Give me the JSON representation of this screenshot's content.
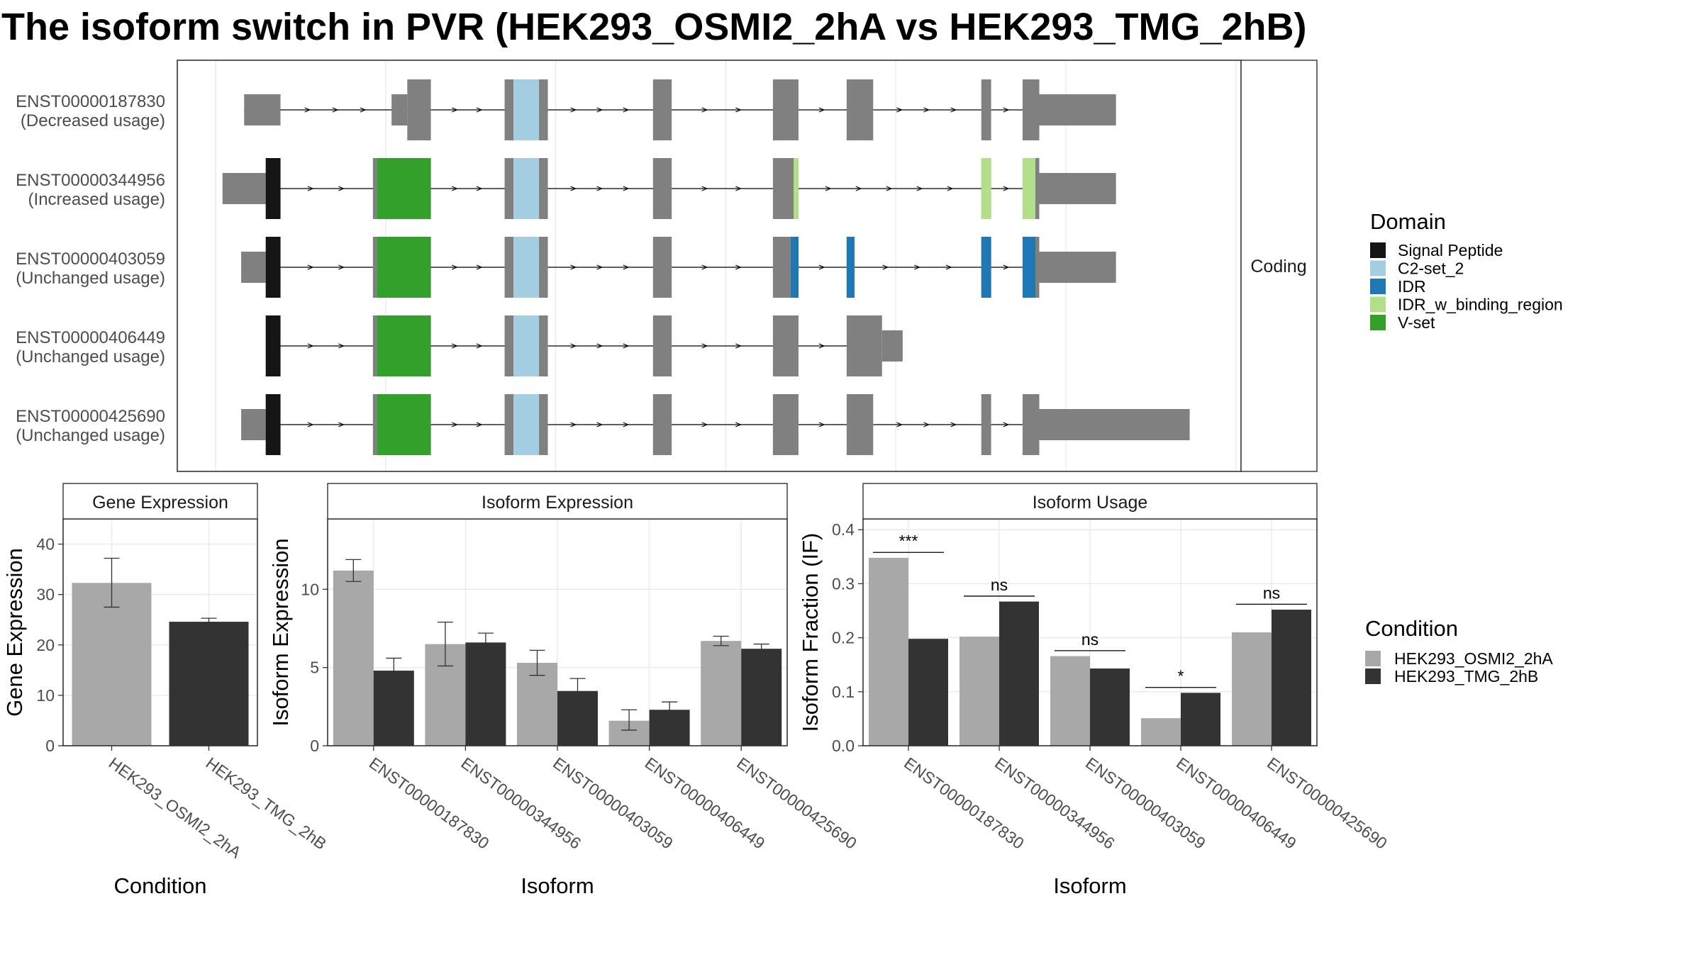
{
  "title": "The isoform switch in PVR (HEK293_OSMI2_2hA vs HEK293_TMG_2hB)",
  "colors": {
    "intron": "#000000",
    "exon": "#808080",
    "cond1": "#a8a8a8",
    "cond2": "#333333",
    "domains": {
      "Signal Peptide": "#141414",
      "C2-set_2": "#a6cee3",
      "IDR": "#1f78b4",
      "IDR_w_binding_region": "#b2df8a",
      "V-set": "#33a02c"
    }
  },
  "structure": {
    "strip_label": "Coding",
    "legend": {
      "title": "Domain",
      "items": [
        "Signal Peptide",
        "C2-set_2",
        "IDR",
        "IDR_w_binding_region",
        "V-set"
      ]
    },
    "transcripts": [
      {
        "id": "ENST00000187830",
        "usage": "(Decreased usage)",
        "exons": [
          [
            0.068,
            0.105,
            "utr"
          ],
          [
            0.218,
            0.234,
            "utr"
          ],
          [
            0.234,
            0.258,
            "cds"
          ],
          [
            0.333,
            0.342,
            "cds"
          ],
          [
            0.342,
            0.368,
            "cds"
          ],
          [
            0.368,
            0.377,
            "cds"
          ],
          [
            0.484,
            0.503,
            "cds"
          ],
          [
            0.606,
            0.632,
            "cds"
          ],
          [
            0.681,
            0.708,
            "cds"
          ],
          [
            0.818,
            0.828,
            "cds"
          ],
          [
            0.86,
            0.877,
            "cds"
          ],
          [
            0.877,
            0.955,
            "utr"
          ]
        ],
        "domains": [
          [
            0.342,
            0.368,
            "C2-set_2"
          ]
        ]
      },
      {
        "id": "ENST00000344956",
        "usage": "(Increased usage)",
        "exons": [
          [
            0.046,
            0.09,
            "utr"
          ],
          [
            0.09,
            0.105,
            "cds"
          ],
          [
            0.199,
            0.203,
            "cds"
          ],
          [
            0.203,
            0.258,
            "cds"
          ],
          [
            0.333,
            0.342,
            "cds"
          ],
          [
            0.342,
            0.368,
            "cds"
          ],
          [
            0.368,
            0.377,
            "cds"
          ],
          [
            0.484,
            0.503,
            "cds"
          ],
          [
            0.606,
            0.627,
            "cds"
          ],
          [
            0.627,
            0.632,
            "cds"
          ],
          [
            0.818,
            0.828,
            "cds"
          ],
          [
            0.86,
            0.873,
            "cds"
          ],
          [
            0.873,
            0.877,
            "cds"
          ],
          [
            0.877,
            0.955,
            "utr"
          ]
        ],
        "domains": [
          [
            0.09,
            0.105,
            "Signal Peptide"
          ],
          [
            0.203,
            0.258,
            "V-set"
          ],
          [
            0.342,
            0.368,
            "C2-set_2"
          ],
          [
            0.627,
            0.632,
            "IDR_w_binding_region"
          ],
          [
            0.818,
            0.828,
            "IDR_w_binding_region"
          ],
          [
            0.86,
            0.873,
            "IDR_w_binding_region"
          ]
        ]
      },
      {
        "id": "ENST00000403059",
        "usage": "(Unchanged usage)",
        "exons": [
          [
            0.065,
            0.09,
            "utr"
          ],
          [
            0.09,
            0.105,
            "cds"
          ],
          [
            0.199,
            0.203,
            "cds"
          ],
          [
            0.203,
            0.258,
            "cds"
          ],
          [
            0.333,
            0.342,
            "cds"
          ],
          [
            0.342,
            0.368,
            "cds"
          ],
          [
            0.368,
            0.377,
            "cds"
          ],
          [
            0.484,
            0.503,
            "cds"
          ],
          [
            0.606,
            0.624,
            "cds"
          ],
          [
            0.624,
            0.632,
            "cds"
          ],
          [
            0.681,
            0.689,
            "cds"
          ],
          [
            0.818,
            0.828,
            "cds"
          ],
          [
            0.86,
            0.873,
            "cds"
          ],
          [
            0.873,
            0.877,
            "cds"
          ],
          [
            0.877,
            0.955,
            "utr"
          ]
        ],
        "domains": [
          [
            0.09,
            0.105,
            "Signal Peptide"
          ],
          [
            0.203,
            0.258,
            "V-set"
          ],
          [
            0.342,
            0.368,
            "C2-set_2"
          ],
          [
            0.624,
            0.632,
            "IDR"
          ],
          [
            0.681,
            0.689,
            "IDR"
          ],
          [
            0.818,
            0.828,
            "IDR"
          ],
          [
            0.86,
            0.873,
            "IDR"
          ]
        ]
      },
      {
        "id": "ENST00000406449",
        "usage": "(Unchanged usage)",
        "exons": [
          [
            0.09,
            0.105,
            "cds"
          ],
          [
            0.199,
            0.203,
            "cds"
          ],
          [
            0.203,
            0.258,
            "cds"
          ],
          [
            0.333,
            0.342,
            "cds"
          ],
          [
            0.342,
            0.368,
            "cds"
          ],
          [
            0.368,
            0.377,
            "cds"
          ],
          [
            0.484,
            0.503,
            "cds"
          ],
          [
            0.606,
            0.632,
            "cds"
          ],
          [
            0.681,
            0.717,
            "cds"
          ],
          [
            0.717,
            0.738,
            "utr"
          ]
        ],
        "domains": [
          [
            0.09,
            0.105,
            "Signal Peptide"
          ],
          [
            0.203,
            0.258,
            "V-set"
          ],
          [
            0.342,
            0.368,
            "C2-set_2"
          ]
        ]
      },
      {
        "id": "ENST00000425690",
        "usage": "(Unchanged usage)",
        "exons": [
          [
            0.065,
            0.09,
            "utr"
          ],
          [
            0.09,
            0.105,
            "cds"
          ],
          [
            0.199,
            0.203,
            "cds"
          ],
          [
            0.203,
            0.258,
            "cds"
          ],
          [
            0.333,
            0.342,
            "cds"
          ],
          [
            0.342,
            0.368,
            "cds"
          ],
          [
            0.368,
            0.377,
            "cds"
          ],
          [
            0.484,
            0.503,
            "cds"
          ],
          [
            0.606,
            0.632,
            "cds"
          ],
          [
            0.681,
            0.708,
            "cds"
          ],
          [
            0.818,
            0.828,
            "cds"
          ],
          [
            0.86,
            0.877,
            "cds"
          ],
          [
            0.877,
            1.03,
            "utr"
          ]
        ],
        "domains": [
          [
            0.09,
            0.105,
            "Signal Peptide"
          ],
          [
            0.203,
            0.258,
            "V-set"
          ],
          [
            0.342,
            0.368,
            "C2-set_2"
          ]
        ]
      }
    ]
  },
  "condition_legend": {
    "title": "Condition",
    "items": [
      "HEK293_OSMI2_2hA",
      "HEK293_TMG_2hB"
    ]
  },
  "chart_data": [
    {
      "type": "bar",
      "title": "Gene Expression",
      "xlabel": "Condition",
      "ylabel": "Gene Expression",
      "ylim": [
        0,
        45
      ],
      "yticks": [
        0,
        10,
        20,
        30,
        40
      ],
      "categories": [
        "HEK293_OSMI2_2hA",
        "HEK293_TMG_2hB"
      ],
      "values": [
        32.3,
        24.6
      ],
      "errors": [
        [
          27.5,
          37.2
        ],
        [
          24.0,
          25.3
        ]
      ]
    },
    {
      "type": "bar",
      "title": "Isoform Expression",
      "xlabel": "Isoform",
      "ylabel": "Isoform Expression",
      "ylim": [
        0,
        14.5
      ],
      "yticks": [
        0,
        5,
        10
      ],
      "categories": [
        "ENST00000187830",
        "ENST00000344956",
        "ENST00000403059",
        "ENST00000406449",
        "ENST00000425690"
      ],
      "series": [
        {
          "name": "HEK293_OSMI2_2hA",
          "values": [
            11.2,
            6.5,
            5.3,
            1.6,
            6.7
          ],
          "errors": [
            [
              10.5,
              11.9
            ],
            [
              5.1,
              7.9
            ],
            [
              4.5,
              6.1
            ],
            [
              1.0,
              2.3
            ],
            [
              6.4,
              7.0
            ]
          ]
        },
        {
          "name": "HEK293_TMG_2hB",
          "values": [
            4.8,
            6.6,
            3.5,
            2.3,
            6.2
          ],
          "errors": [
            [
              4.1,
              5.6
            ],
            [
              6.0,
              7.2
            ],
            [
              2.8,
              4.3
            ],
            [
              1.9,
              2.8
            ],
            [
              5.8,
              6.5
            ]
          ]
        }
      ]
    },
    {
      "type": "bar",
      "title": "Isoform Usage",
      "xlabel": "Isoform",
      "ylabel": "Isoform Fraction (IF)",
      "ylim": [
        0,
        0.42
      ],
      "yticks": [
        0.0,
        0.1,
        0.2,
        0.3,
        0.4
      ],
      "yticklabels": [
        "0.0",
        "0.1",
        "0.2",
        "0.3",
        "0.4"
      ],
      "categories": [
        "ENST00000187830",
        "ENST00000344956",
        "ENST00000403059",
        "ENST00000406449",
        "ENST00000425690"
      ],
      "series": [
        {
          "name": "HEK293_OSMI2_2hA",
          "values": [
            0.348,
            0.202,
            0.166,
            0.051,
            0.21
          ]
        },
        {
          "name": "HEK293_TMG_2hB",
          "values": [
            0.198,
            0.267,
            0.143,
            0.098,
            0.252
          ]
        }
      ],
      "significance": [
        "***",
        "ns",
        "ns",
        "*",
        "ns"
      ]
    }
  ]
}
